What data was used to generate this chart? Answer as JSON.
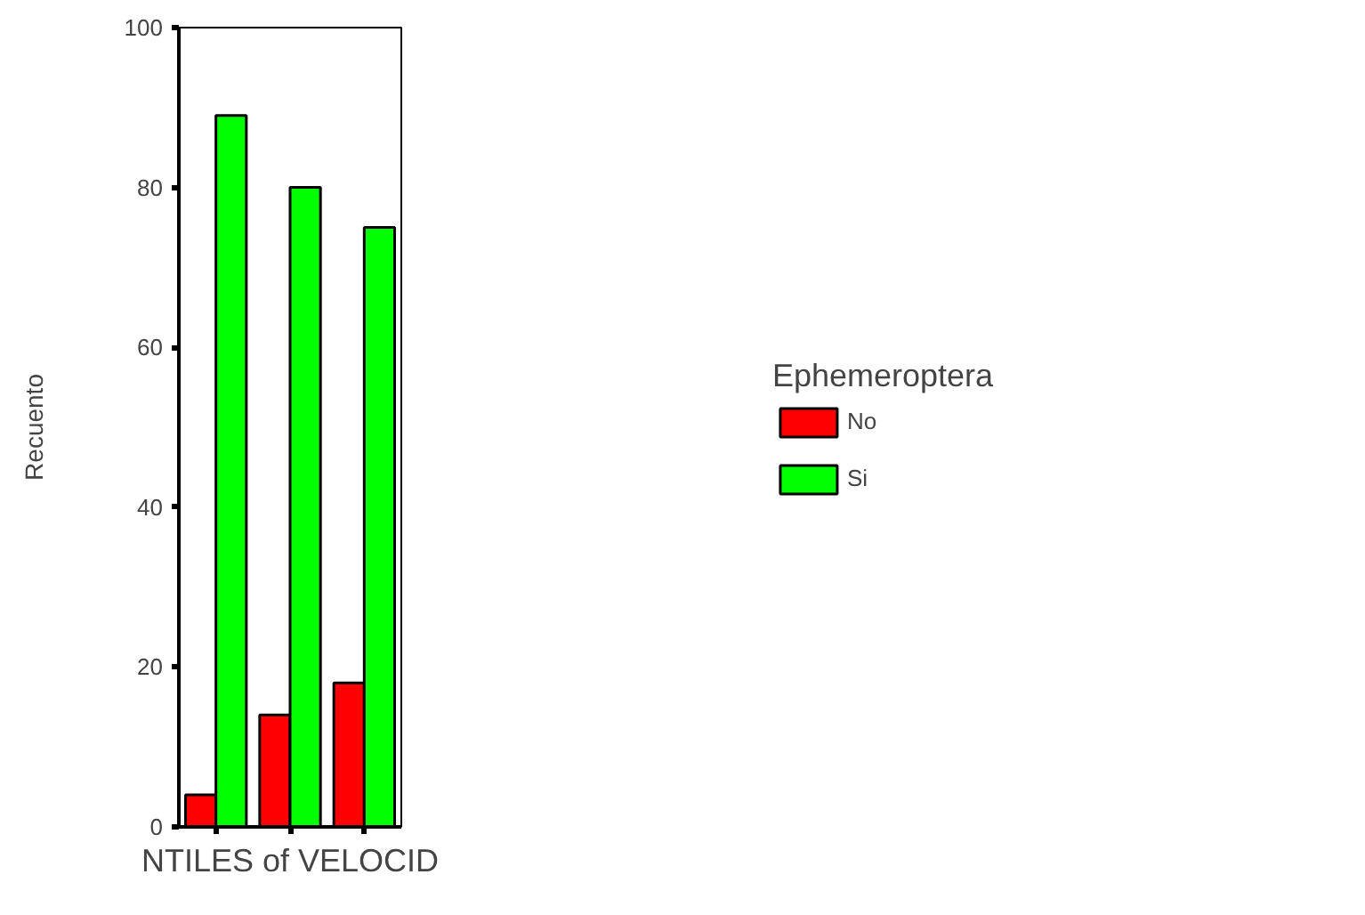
{
  "chart_data": {
    "type": "bar",
    "xlabel": "NTILES of VELOCID",
    "ylabel": "Recuento",
    "legend_title": "Ephemeroptera",
    "categories": [
      null,
      null,
      null
    ],
    "series": [
      {
        "name": "No",
        "color": "#ff0000",
        "values": [
          4,
          14,
          18
        ]
      },
      {
        "name": "Si",
        "color": "#00ff00",
        "values": [
          89,
          80,
          75
        ]
      }
    ],
    "ylim": [
      0,
      100
    ],
    "yticks": [
      0,
      20,
      40,
      60,
      80,
      100
    ],
    "grid": false,
    "legend": "right"
  }
}
